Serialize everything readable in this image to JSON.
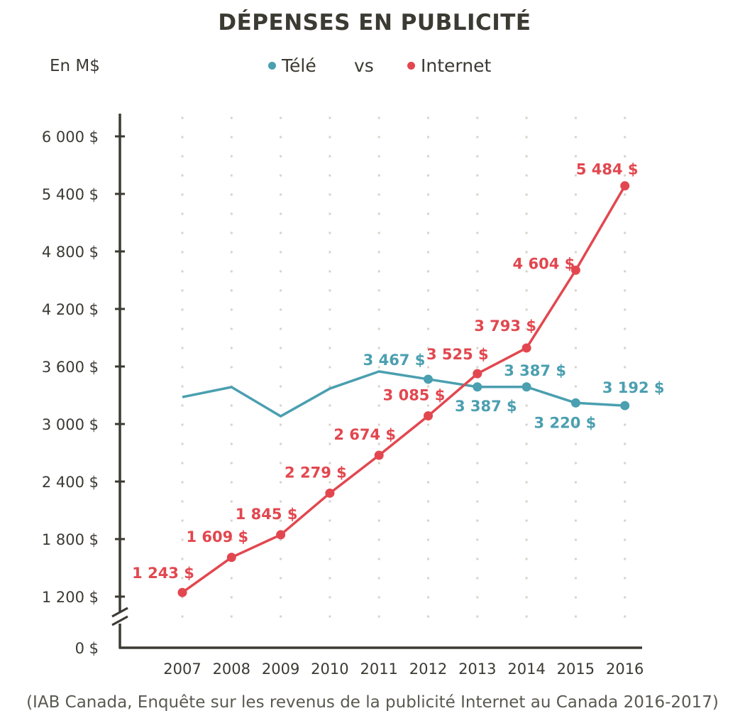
{
  "colors": {
    "tele": "#4a9fb0",
    "internet": "#e2474f",
    "axis": "#3b3a33",
    "grid_dot": "#d6d4c8"
  },
  "header": {
    "title": "DÉPENSES EN PUBLICITÉ",
    "unit": "En M$",
    "vs": "vs"
  },
  "source": "(IAB Canada, Enquête sur les revenus de la publicité Internet au Canada 2016-2017)",
  "chart_data": {
    "type": "line",
    "title": "DÉPENSES EN PUBLICITÉ",
    "xlabel": "",
    "ylabel": "En M$",
    "x": [
      "2007",
      "2008",
      "2009",
      "2010",
      "2011",
      "2012",
      "2013",
      "2014",
      "2015",
      "2016"
    ],
    "y_ticks": [
      {
        "value": 0,
        "label": "0 $"
      },
      {
        "value": 1200,
        "label": "1 200 $"
      },
      {
        "value": 1800,
        "label": "1 800 $"
      },
      {
        "value": 2400,
        "label": "2 400 $"
      },
      {
        "value": 3000,
        "label": "3 000 $"
      },
      {
        "value": 3600,
        "label": "3 600 $"
      },
      {
        "value": 4200,
        "label": "4 200 $"
      },
      {
        "value": 4800,
        "label": "4 800 $"
      },
      {
        "value": 5400,
        "label": "5 400 $"
      },
      {
        "value": 6000,
        "label": "6 000 $"
      }
    ],
    "ylim": [
      1200,
      6000
    ],
    "axis_break": true,
    "grid": "dotted",
    "legend_position": "top-center",
    "series": [
      {
        "name": "Télé",
        "color": "#4a9fb0",
        "values": [
          3281,
          3385,
          3081,
          3370,
          3548,
          3467,
          3387,
          3387,
          3220,
          3192
        ],
        "markers": [
          false,
          false,
          false,
          false,
          false,
          true,
          true,
          true,
          true,
          true
        ],
        "labels": [
          null,
          null,
          null,
          null,
          null,
          "3 467 $",
          "3 387 $",
          "3 387 $",
          "3 220 $",
          "3 192 $"
        ],
        "label_pos": [
          null,
          null,
          null,
          null,
          null,
          "above-left",
          "below",
          "above",
          "below-left",
          "above-right"
        ]
      },
      {
        "name": "Internet",
        "color": "#e2474f",
        "values": [
          1243,
          1609,
          1845,
          2279,
          2674,
          3085,
          3525,
          3793,
          4604,
          5484
        ],
        "markers": [
          true,
          true,
          true,
          true,
          true,
          true,
          true,
          true,
          true,
          true
        ],
        "labels": [
          "1 243 $",
          "1 609 $",
          "1 845 $",
          "2 279 $",
          "2 674 $",
          "3 085 $",
          "3 525 $",
          "3 793 $",
          "4 604 $",
          "5 484 $"
        ],
        "label_pos": [
          "above-left",
          "above-left",
          "above-left",
          "above-left",
          "above-left",
          "above-left",
          "above",
          "above-left",
          "above-left",
          "above-left"
        ]
      }
    ]
  }
}
